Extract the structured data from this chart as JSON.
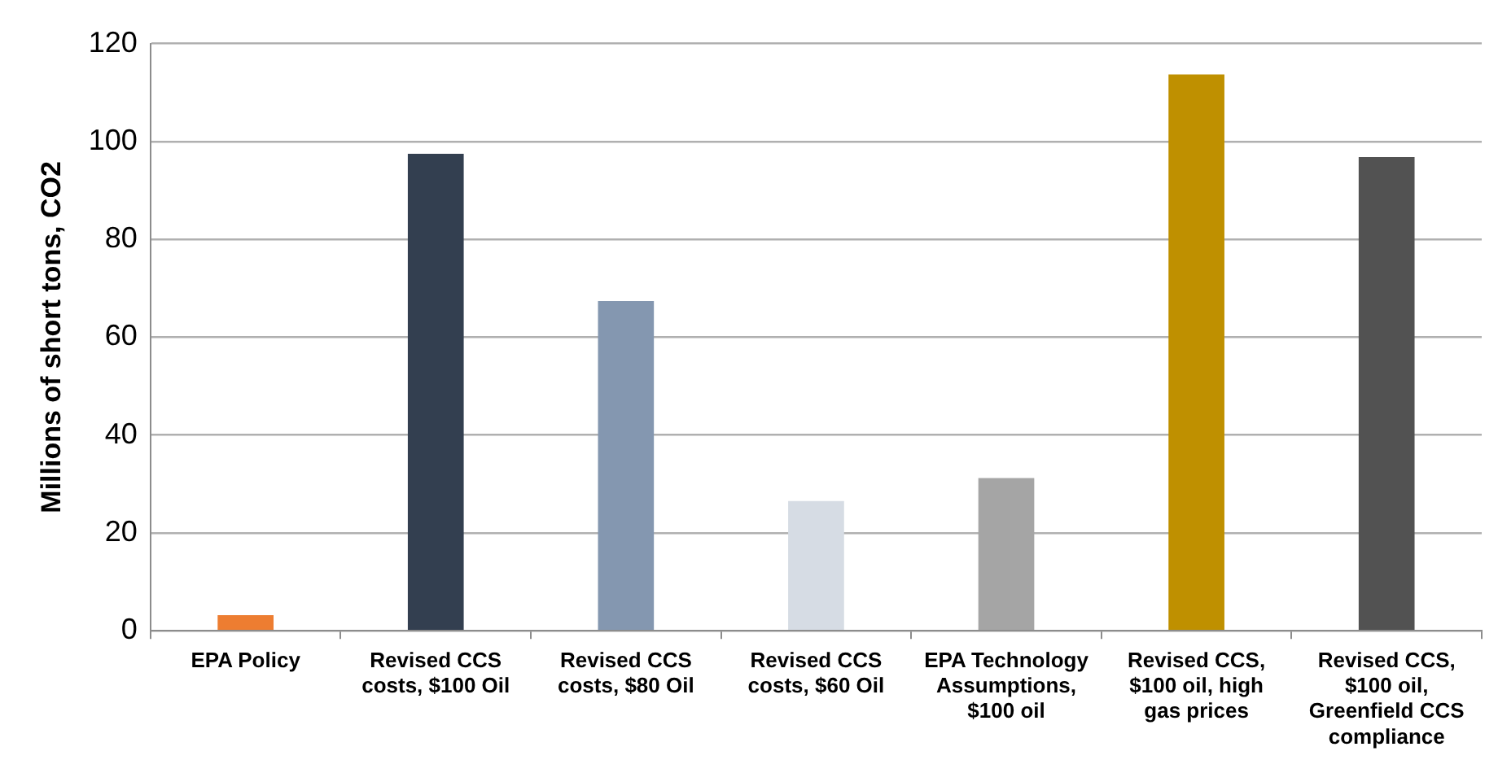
{
  "chart_data": {
    "type": "bar",
    "ylabel": "Millions of short tons, CO2",
    "categories": [
      "EPA Policy",
      "Revised CCS costs, $100 Oil",
      "Revised CCS costs, $80 Oil",
      "Revised CCS costs, $60 Oil",
      "EPA Technology Assumptions, $100 oil",
      "Revised CCS, $100 oil, high gas prices",
      "Revised CCS, $100 oil, Greenfield CCS compliance"
    ],
    "values": [
      3.2,
      97.5,
      67.4,
      26.5,
      31.2,
      113.7,
      96.8
    ],
    "colors": [
      "#ed7d31",
      "#333f50",
      "#8497b0",
      "#d6dce4",
      "#a5a5a5",
      "#bf9000",
      "#525252"
    ],
    "ylim": [
      0,
      120
    ],
    "yticks": [
      0,
      20,
      40,
      60,
      80,
      100,
      120
    ],
    "grid": "y",
    "legend": false
  }
}
